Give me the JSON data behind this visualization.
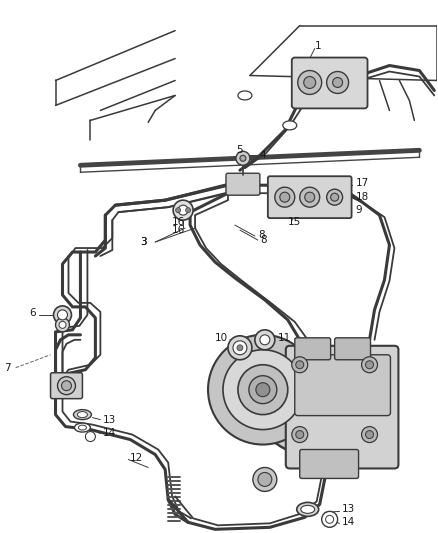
{
  "background_color": "#ffffff",
  "line_color": "#3a3a3a",
  "label_color": "#1a1a1a",
  "figsize": [
    4.38,
    5.33
  ],
  "dpi": 100,
  "lw_pipe1": 2.2,
  "lw_pipe2": 1.3,
  "lw_struct": 1.1,
  "lw_leader": 0.7
}
